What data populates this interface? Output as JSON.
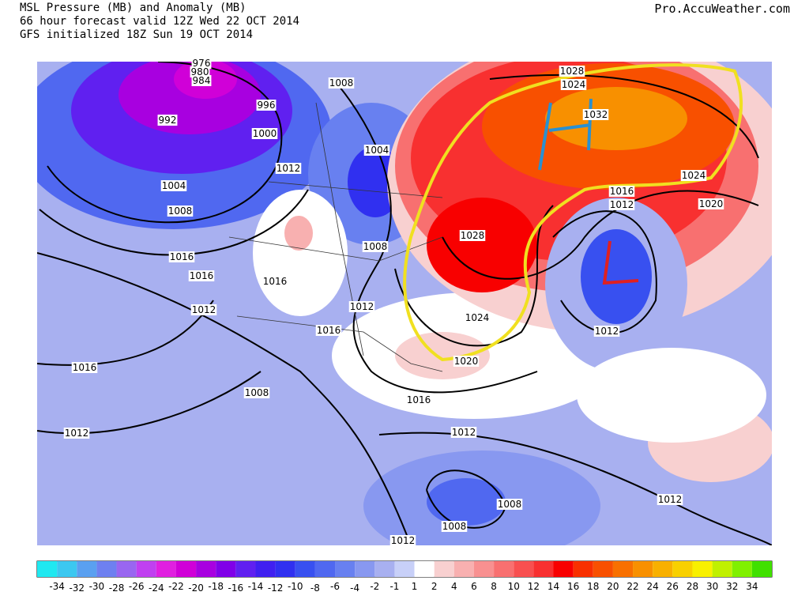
{
  "header": {
    "title": "MSL Pressure (MB) and Anomaly (MB)",
    "forecast": "66 hour forecast valid 12Z Wed 22 OCT 2014",
    "initialized": "GFS initialized 18Z Sun 19 OCT 2014",
    "credit": "Pro.AccuWeather.com"
  },
  "isobar_labels": [
    "976",
    "980",
    "984",
    "996",
    "992",
    "1000",
    "1008",
    "1004",
    "1012",
    "1004",
    "1008",
    "1016",
    "1016",
    "1016",
    "1008",
    "1012",
    "1012",
    "1016",
    "1016",
    "1008",
    "1016",
    "1012",
    "1012",
    "1008",
    "1008",
    "1012",
    "1012",
    "1012",
    "1024",
    "1020",
    "1028",
    "1024",
    "1028",
    "1032",
    "1024",
    "1016",
    "1012",
    "1020"
  ],
  "colorbar": {
    "labels": [
      -34,
      -32,
      -30,
      -28,
      -26,
      -24,
      -22,
      -20,
      -18,
      -16,
      -14,
      -12,
      -10,
      -8,
      -6,
      -4,
      -2,
      -1,
      1,
      2,
      4,
      6,
      8,
      10,
      12,
      14,
      16,
      18,
      20,
      22,
      24,
      26,
      28,
      30,
      32,
      34
    ],
    "colors": [
      "#20e8f0",
      "#3cc8f0",
      "#5aa0f0",
      "#6e80f0",
      "#9966f0",
      "#c040f0",
      "#e020e0",
      "#d000d8",
      "#a800e0",
      "#8000e8",
      "#6020f0",
      "#4020f0",
      "#3030f0",
      "#3850f0",
      "#5068f0",
      "#6880f0",
      "#8898f0",
      "#a8b0f0",
      "#c8d0f8",
      "#ffffff",
      "#f8d0d0",
      "#f8b0b0",
      "#f89090",
      "#f87070",
      "#f85050",
      "#f83030",
      "#f80000",
      "#f83000",
      "#f85000",
      "#f87000",
      "#f89000",
      "#f8b000",
      "#f8d000",
      "#f8f000",
      "#c0f000",
      "#80f000",
      "#40e000"
    ]
  }
}
